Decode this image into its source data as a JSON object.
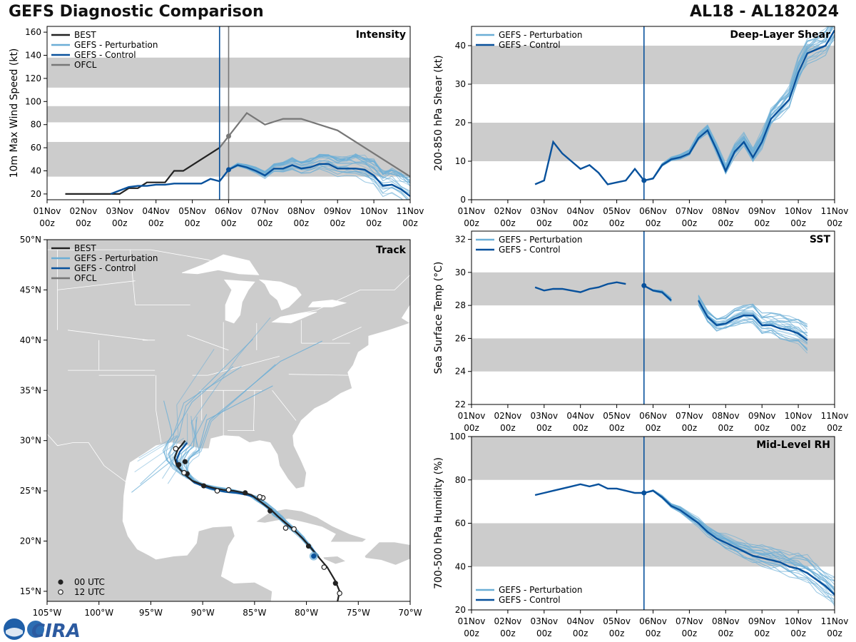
{
  "header": {
    "title": "GEFS Diagnostic Comparison",
    "storm_id": "AL18 - AL182024"
  },
  "colors": {
    "best": "#222222",
    "perturbation": "#6baed6",
    "control": "#08519c",
    "ofcl": "#777777",
    "band": "#cccccc",
    "land": "#cccccc"
  },
  "time_axis": {
    "tick_day_labels": [
      "01Nov",
      "02Nov",
      "03Nov",
      "04Nov",
      "05Nov",
      "06Nov",
      "07Nov",
      "08Nov",
      "09Nov",
      "10Nov",
      "11Nov"
    ],
    "tick_hour_label": "00z",
    "current_time": 4.75,
    "ofcl_time": 5.0
  },
  "legend": {
    "best": "BEST",
    "perturbation": "GEFS - Perturbation",
    "control": "GEFS - Control",
    "ofcl": "OFCL",
    "utc00": "00 UTC",
    "utc12": "12 UTC"
  },
  "logo_text": "CIRA",
  "chart_data": [
    {
      "id": "intensity",
      "type": "line",
      "title": "Intensity",
      "ylabel": "10m Max Wind Speed (kt)",
      "xlim": [
        0,
        10
      ],
      "ylim": [
        15,
        165
      ],
      "yticks": [
        20,
        40,
        60,
        80,
        100,
        120,
        140,
        160
      ],
      "bands": [
        [
          35,
          65
        ],
        [
          82,
          96
        ],
        [
          112,
          138
        ]
      ],
      "series": [
        {
          "name": "BEST",
          "x": [
            0.5,
            0.75,
            1,
            1.25,
            1.5,
            1.75,
            2,
            2.25,
            2.5,
            2.75,
            3,
            3.25,
            3.5,
            3.75,
            4,
            4.25,
            4.5,
            4.75
          ],
          "y": [
            20,
            20,
            20,
            20,
            20,
            20,
            20,
            25,
            25,
            30,
            30,
            30,
            40,
            40,
            45,
            50,
            55,
            60
          ]
        },
        {
          "name": "OFCL",
          "x": [
            4.75,
            5,
            5.5,
            6,
            6.5,
            7,
            8,
            9,
            10
          ],
          "y": [
            60,
            70,
            90,
            80,
            85,
            85,
            75,
            55,
            35
          ]
        },
        {
          "name": "GEFS - Control",
          "x": [
            1.75,
            2,
            2.25,
            2.5,
            2.75,
            3,
            3.25,
            3.5,
            3.75,
            4,
            4.25,
            4.5,
            4.75,
            5,
            5.25,
            5.5,
            5.75,
            6,
            6.25,
            6.5,
            6.75,
            7,
            7.25,
            7.5,
            7.75,
            8,
            8.25,
            8.5,
            8.75,
            9,
            9.25,
            9.5,
            9.75,
            10
          ],
          "y": [
            20,
            23,
            26,
            27,
            27,
            28,
            28,
            29,
            29,
            29,
            29,
            33,
            31,
            41,
            45,
            43,
            40,
            36,
            42,
            42,
            45,
            42,
            43,
            46,
            46,
            42,
            42,
            42,
            41,
            36,
            27,
            28,
            24,
            18
          ]
        }
      ]
    },
    {
      "id": "shear",
      "type": "line",
      "title": "Deep-Layer Shear",
      "ylabel": "200-850 hPa Shear (kt)",
      "xlim": [
        0,
        10
      ],
      "ylim": [
        0,
        45
      ],
      "yticks": [
        0,
        10,
        20,
        30,
        40
      ],
      "bands": [
        [
          10,
          20
        ],
        [
          30,
          40
        ]
      ],
      "series": [
        {
          "name": "GEFS - Control",
          "x": [
            1.75,
            2,
            2.25,
            2.5,
            2.75,
            3,
            3.25,
            3.5,
            3.75,
            4,
            4.25,
            4.5,
            4.75,
            5,
            5.25,
            5.5,
            5.75,
            6,
            6.25,
            6.5,
            6.75,
            7,
            7.25,
            7.5,
            7.75,
            8,
            8.25,
            8.5,
            8.75,
            9,
            9.25,
            9.5,
            9.75,
            10
          ],
          "y": [
            4,
            5,
            15,
            12,
            10,
            8,
            9,
            7,
            4,
            4.5,
            5,
            8,
            5,
            5.5,
            9,
            10.5,
            11,
            12,
            16,
            18,
            13,
            7.5,
            12.5,
            15,
            11,
            15,
            21,
            23.5,
            26,
            33,
            38,
            39,
            40,
            44
          ]
        }
      ]
    },
    {
      "id": "sst",
      "type": "line",
      "title": "SST",
      "ylabel": "Sea Surface Temp (°C)",
      "xlim": [
        0,
        10
      ],
      "ylim": [
        22,
        32.5
      ],
      "yticks": [
        22,
        24,
        26,
        28,
        30,
        32
      ],
      "bands": [
        [
          24,
          26
        ],
        [
          28,
          30
        ]
      ],
      "series": [
        {
          "name": "GEFS - Control",
          "segments": [
            {
              "x": [
                1.75,
                2,
                2.25,
                2.5,
                2.75,
                3,
                3.25,
                3.5,
                3.75,
                4,
                4.25
              ],
              "y": [
                29.1,
                28.9,
                29.0,
                29.0,
                28.9,
                28.8,
                29.0,
                29.1,
                29.3,
                29.4,
                29.3
              ]
            },
            {
              "x": [
                4.75,
                5,
                5.25,
                5.5
              ],
              "y": [
                29.2,
                28.9,
                28.8,
                28.3
              ]
            },
            {
              "x": [
                6.25,
                6.5,
                6.75,
                7,
                7.25,
                7.5,
                7.75,
                8,
                8.25,
                8.5,
                8.75,
                9,
                9.25
              ],
              "y": [
                28.3,
                27.3,
                26.8,
                26.9,
                27.2,
                27.4,
                27.4,
                26.8,
                26.8,
                26.6,
                26.5,
                26.3,
                25.9
              ]
            }
          ]
        }
      ]
    },
    {
      "id": "rh",
      "type": "line",
      "title": "Mid-Level RH",
      "ylabel": "700-500 hPa Humidity (%)",
      "xlim": [
        0,
        10
      ],
      "ylim": [
        20,
        100
      ],
      "yticks": [
        20,
        40,
        60,
        80,
        100
      ],
      "bands": [
        [
          40,
          60
        ],
        [
          80,
          100
        ]
      ],
      "series": [
        {
          "name": "GEFS - Control",
          "x": [
            1.75,
            2,
            2.25,
            2.5,
            2.75,
            3,
            3.25,
            3.5,
            3.75,
            4,
            4.25,
            4.5,
            4.75,
            5,
            5.25,
            5.5,
            5.75,
            6,
            6.25,
            6.5,
            6.75,
            7,
            7.25,
            7.5,
            7.75,
            8,
            8.25,
            8.5,
            8.75,
            9,
            9.25,
            9.5,
            9.75,
            10
          ],
          "y": [
            73,
            74,
            75,
            76,
            77,
            78,
            77,
            78,
            76,
            76,
            75,
            74,
            74,
            75,
            72,
            68,
            66,
            63,
            60,
            56,
            53,
            51,
            49,
            47,
            45,
            44,
            43,
            42,
            40,
            39,
            37,
            34,
            31,
            27
          ]
        }
      ]
    },
    {
      "id": "track",
      "type": "scatter",
      "title": "Track",
      "xlim": [
        -105,
        -70
      ],
      "ylim": [
        14,
        50
      ],
      "xtick_labels": [
        "105°W",
        "100°W",
        "95°W",
        "90°W",
        "85°W",
        "80°W",
        "75°W",
        "70°W"
      ],
      "xtick_values": [
        -105,
        -100,
        -95,
        -90,
        -85,
        -80,
        -75,
        -70
      ],
      "ytick_labels": [
        "15°N",
        "20°N",
        "25°N",
        "30°N",
        "35°N",
        "40°N",
        "45°N",
        "50°N"
      ],
      "ytick_values": [
        15,
        20,
        25,
        30,
        35,
        40,
        45,
        50
      ],
      "best_track": {
        "lon": [
          -77.0,
          -76.8,
          -77.2,
          -78.0,
          -79.0,
          -79.8,
          -80.5,
          -81.3,
          -82.0,
          -82.8,
          -83.5,
          -84.5,
          -85.3,
          -86.0,
          -87.0,
          -88.0,
          -89.0,
          -90.0,
          -91.0,
          -91.8,
          -92.5,
          -92.7,
          -92.4,
          -92.0,
          -91.7
        ],
        "lat": [
          14.0,
          15.0,
          16.0,
          17.4,
          18.6,
          19.6,
          20.4,
          21.2,
          21.8,
          22.5,
          23.2,
          24.0,
          24.6,
          24.8,
          25.0,
          25.1,
          25.3,
          25.6,
          26.0,
          26.7,
          27.5,
          28.3,
          29.1,
          29.6,
          30.0
        ]
      },
      "points_00": {
        "lon": [
          -77.2,
          -79.8,
          -83.5,
          -85.9,
          -89.9,
          -91.5,
          -92.3,
          -91.7
        ],
        "lat": [
          15.8,
          19.5,
          23.0,
          24.8,
          25.5,
          26.7,
          27.6,
          27.9
        ]
      },
      "points_12": {
        "lon": [
          -76.8,
          -78.3,
          -81.2,
          -82.0,
          -84.2,
          -84.5,
          -87.5,
          -88.6,
          -91.8,
          -92.6
        ],
        "lat": [
          14.8,
          17.4,
          21.2,
          21.3,
          24.3,
          24.4,
          25.1,
          25.0,
          26.8,
          29.2
        ]
      },
      "current_position": {
        "lon": [
          -79.3
        ],
        "lat": [
          18.5
        ]
      }
    }
  ]
}
